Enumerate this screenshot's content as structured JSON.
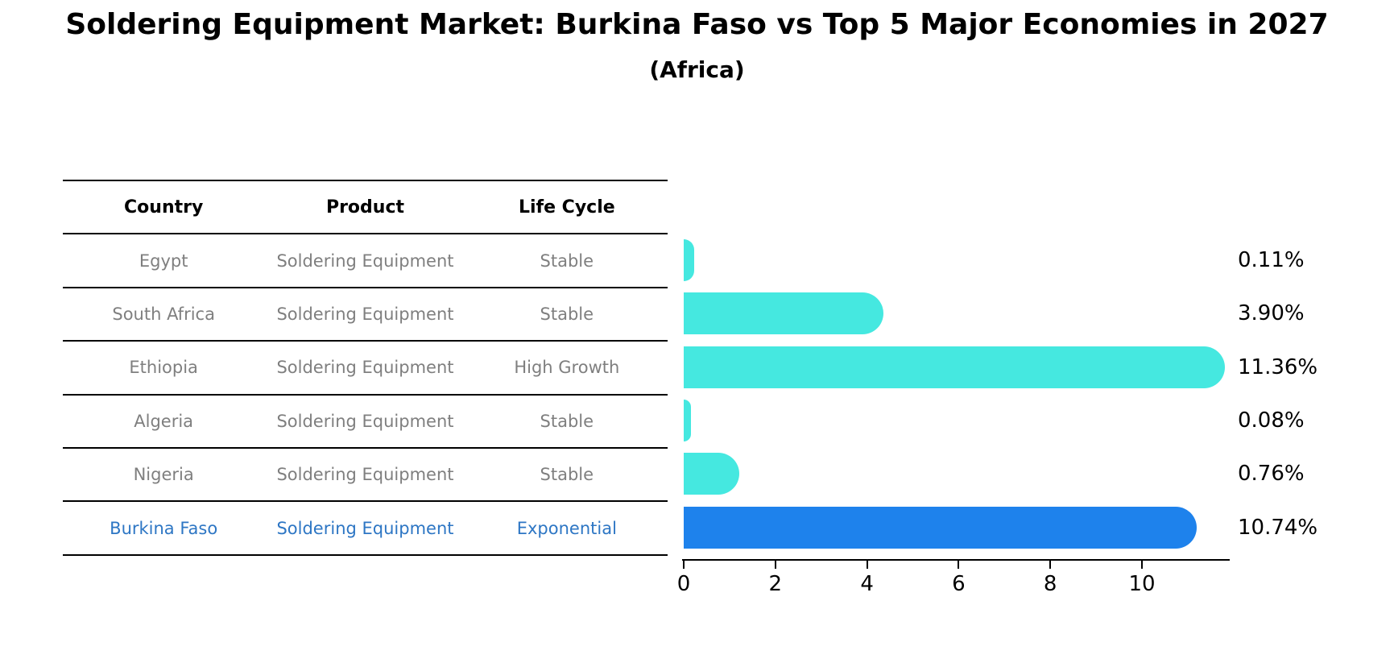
{
  "title": "Soldering Equipment Market: Burkina Faso vs Top 5 Major Economies in 2027",
  "subtitle": "(Africa)",
  "table": {
    "headers": [
      "Country",
      "Product",
      "Life Cycle"
    ],
    "rows": [
      {
        "country": "Egypt",
        "product": "Soldering Equipment",
        "life_cycle": "Stable",
        "highlight": false
      },
      {
        "country": "South Africa",
        "product": "Soldering Equipment",
        "life_cycle": "Stable",
        "highlight": false
      },
      {
        "country": "Ethiopia",
        "product": "Soldering Equipment",
        "life_cycle": "High Growth",
        "highlight": false
      },
      {
        "country": "Algeria",
        "product": "Soldering Equipment",
        "life_cycle": "Stable",
        "highlight": false
      },
      {
        "country": "Nigeria",
        "product": "Soldering Equipment",
        "life_cycle": "Stable",
        "highlight": false
      },
      {
        "country": "Burkina Faso",
        "product": "Soldering Equipment",
        "life_cycle": "Exponential",
        "highlight": true
      }
    ]
  },
  "chart_data": {
    "type": "bar",
    "orientation": "horizontal",
    "title": "Soldering Equipment Market: Burkina Faso vs Top 5 Major Economies in 2027 (Africa)",
    "categories": [
      "Egypt",
      "South Africa",
      "Ethiopia",
      "Algeria",
      "Nigeria",
      "Burkina Faso"
    ],
    "values": [
      0.11,
      3.9,
      11.36,
      0.08,
      0.76,
      10.74
    ],
    "value_labels": [
      "0.11%",
      "3.90%",
      "11.36%",
      "0.08%",
      "0.76%",
      "10.74%"
    ],
    "xticks": [
      0,
      2,
      4,
      6,
      8,
      10
    ],
    "xlim": [
      0,
      11.9
    ],
    "grid": false,
    "legend": false,
    "bar_color": "#45E8E0",
    "highlight_color": "#1E82EC",
    "highlight_index": 5
  },
  "colors": {
    "table_text": "#7F7F7F",
    "header_text": "#000000",
    "highlight_text": "#2D76C4",
    "axis": "#000000"
  }
}
